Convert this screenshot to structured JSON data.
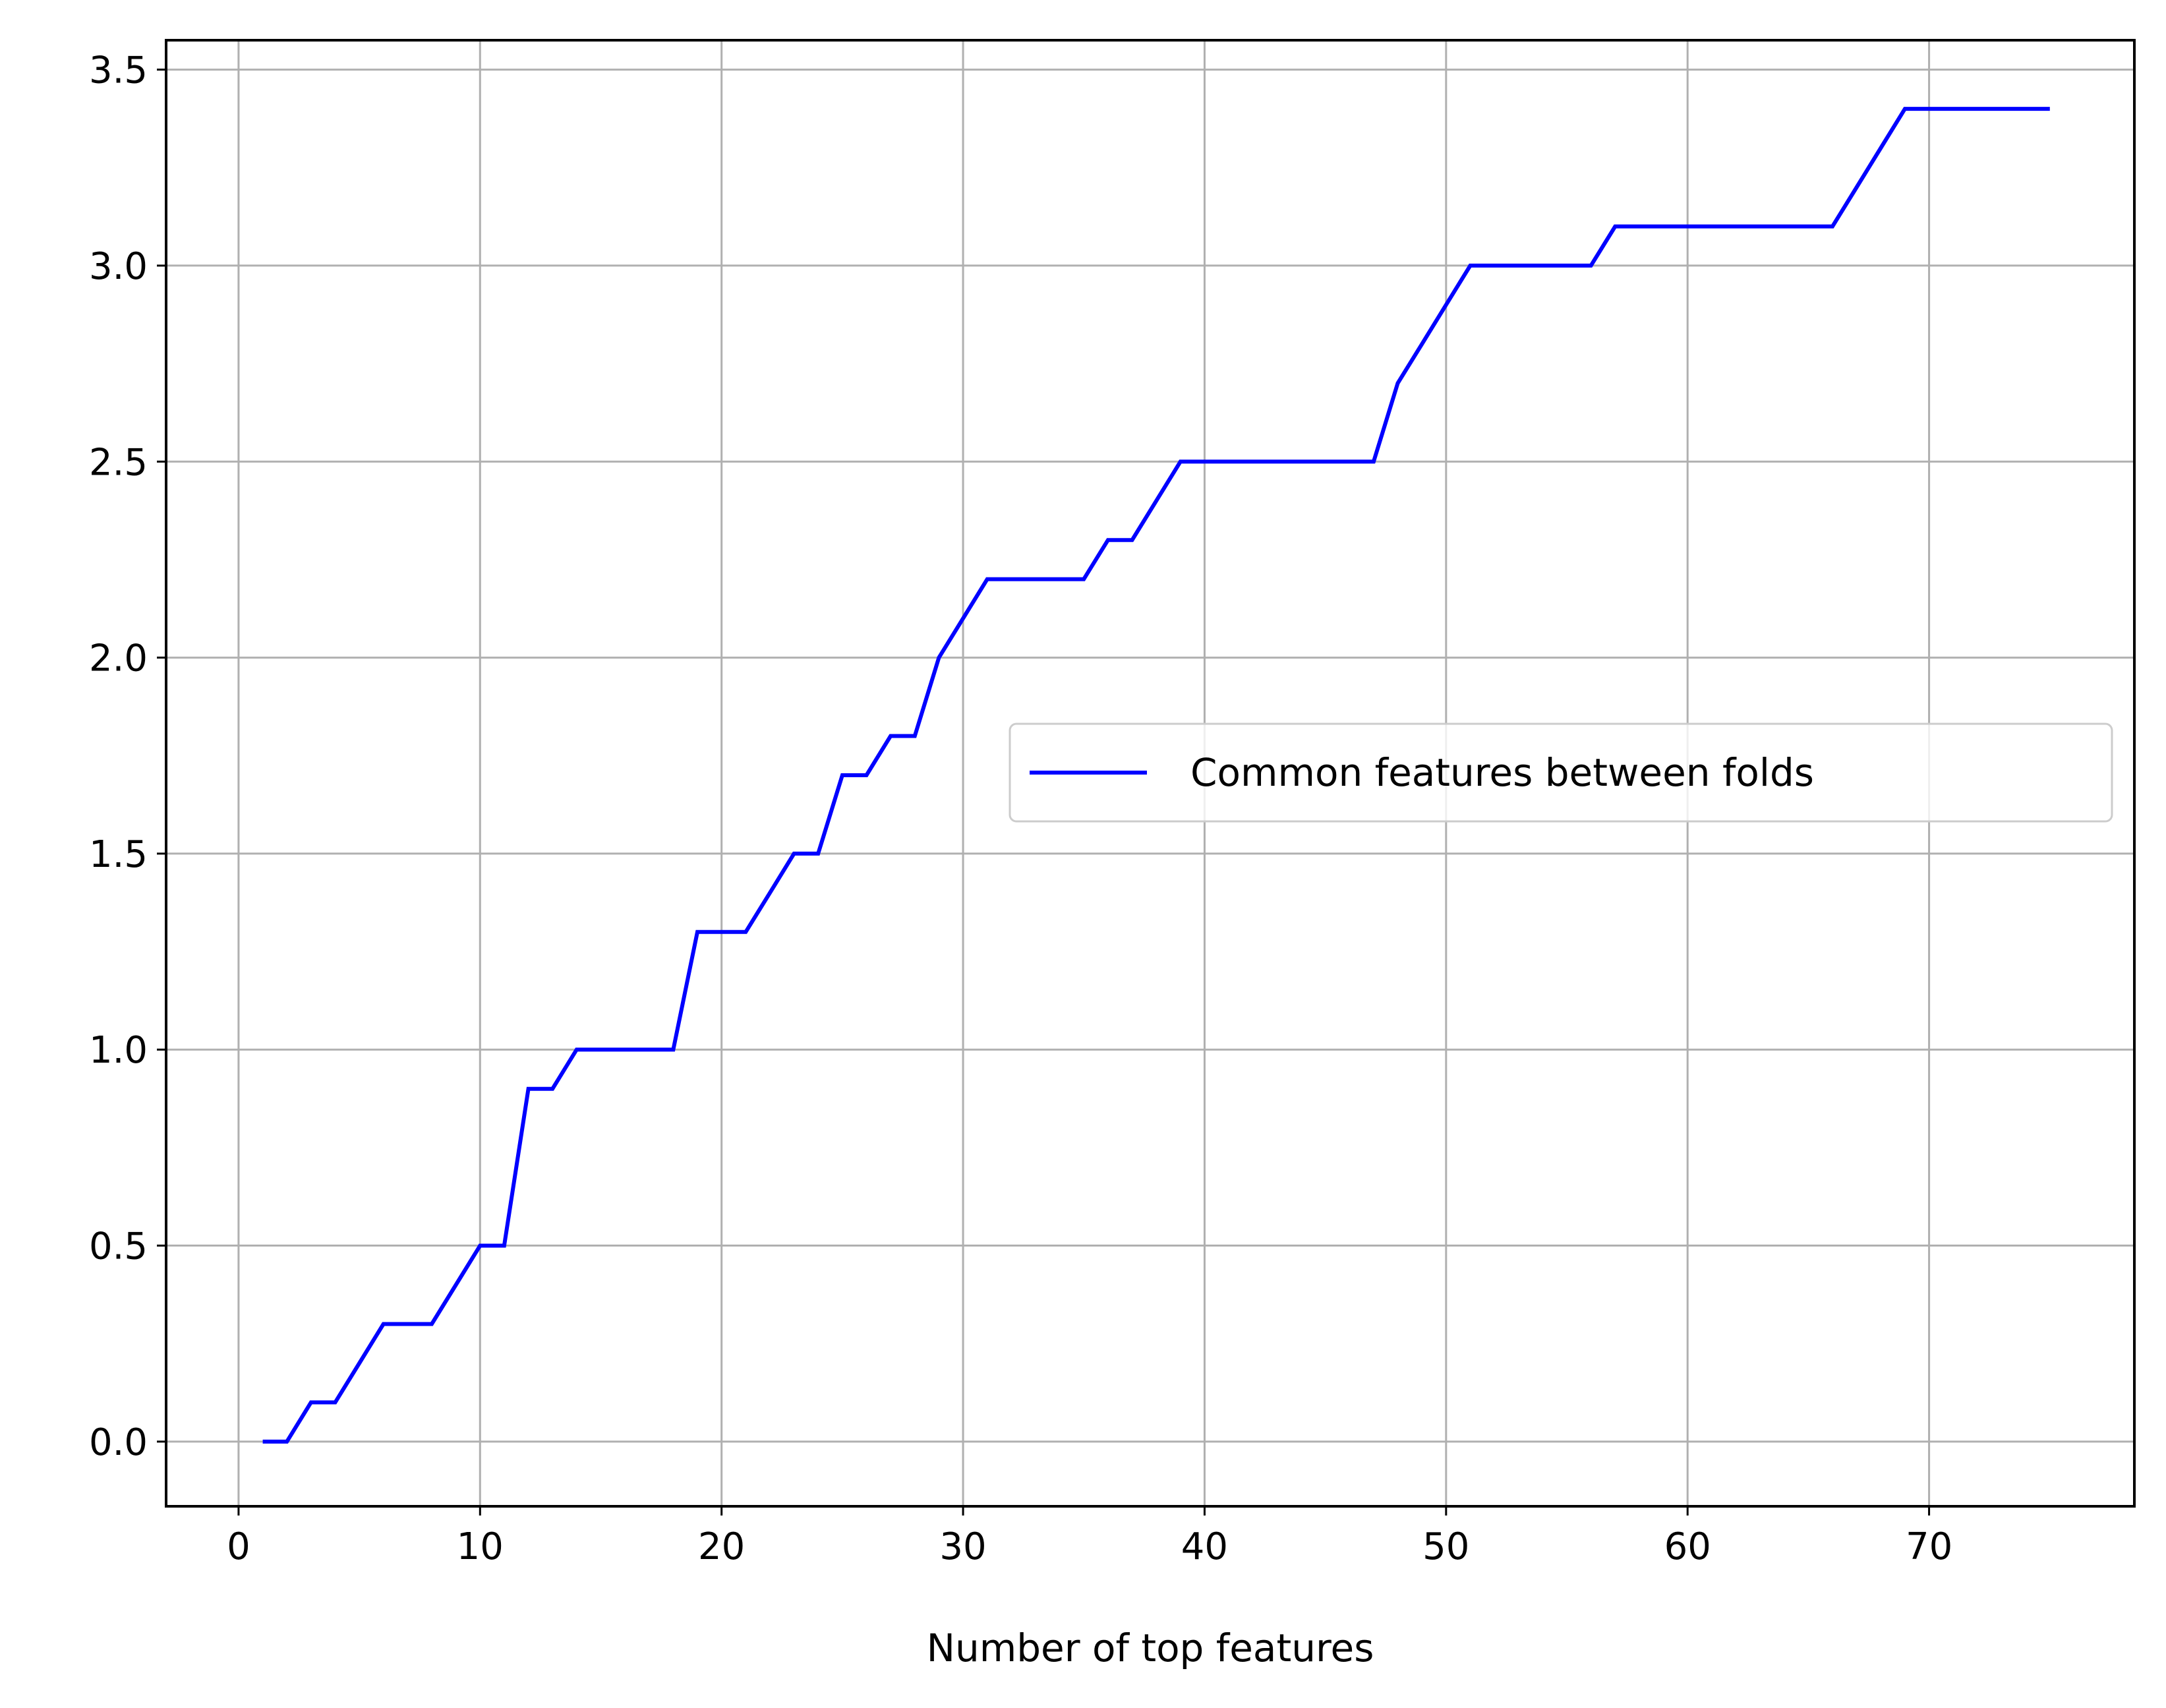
{
  "chart_data": {
    "type": "line",
    "title": "",
    "xlabel": "Number of top features",
    "ylabel": "",
    "xlim": [
      -3,
      78.5
    ],
    "ylim": [
      -0.165,
      3.575
    ],
    "xticks": [
      0,
      10,
      20,
      30,
      40,
      50,
      60,
      70
    ],
    "yticks": [
      0.0,
      0.5,
      1.0,
      1.5,
      2.0,
      2.5,
      3.0,
      3.5
    ],
    "xtick_labels": [
      "0",
      "10",
      "20",
      "30",
      "40",
      "50",
      "60",
      "70"
    ],
    "ytick_labels": [
      "0.0",
      "0.5",
      "1.0",
      "1.5",
      "2.0",
      "2.5",
      "3.0",
      "3.5"
    ],
    "grid": true,
    "legend_position": "center-right",
    "series": [
      {
        "name": "Common features between folds",
        "color": "#0000ff",
        "x": [
          1,
          2,
          3,
          4,
          5,
          6,
          7,
          8,
          9,
          10,
          11,
          12,
          13,
          14,
          15,
          16,
          17,
          18,
          19,
          20,
          21,
          22,
          23,
          24,
          25,
          26,
          27,
          28,
          29,
          30,
          31,
          32,
          33,
          34,
          35,
          36,
          37,
          38,
          39,
          40,
          41,
          42,
          43,
          44,
          45,
          46,
          47,
          48,
          49,
          50,
          51,
          52,
          53,
          54,
          55,
          56,
          57,
          58,
          59,
          60,
          61,
          62,
          63,
          64,
          65,
          66,
          67,
          68,
          69,
          70,
          71,
          72,
          73,
          74,
          75
        ],
        "y": [
          0,
          0,
          0.1,
          0.1,
          0.2,
          0.3,
          0.3,
          0.3,
          0.4,
          0.5,
          0.5,
          0.9,
          0.9,
          1.0,
          1.0,
          1.0,
          1.0,
          1.0,
          1.3,
          1.3,
          1.3,
          1.4,
          1.5,
          1.5,
          1.7,
          1.7,
          1.8,
          1.8,
          2.0,
          2.1,
          2.2,
          2.2,
          2.2,
          2.2,
          2.2,
          2.3,
          2.3,
          2.4,
          2.5,
          2.5,
          2.5,
          2.5,
          2.5,
          2.5,
          2.5,
          2.5,
          2.5,
          2.7,
          2.8,
          2.9,
          3.0,
          3.0,
          3.0,
          3.0,
          3.0,
          3.0,
          3.1,
          3.1,
          3.1,
          3.1,
          3.1,
          3.1,
          3.1,
          3.1,
          3.1,
          3.1,
          3.2,
          3.3,
          3.4,
          3.4,
          3.4,
          3.4,
          3.4,
          3.4,
          3.4
        ]
      }
    ]
  }
}
